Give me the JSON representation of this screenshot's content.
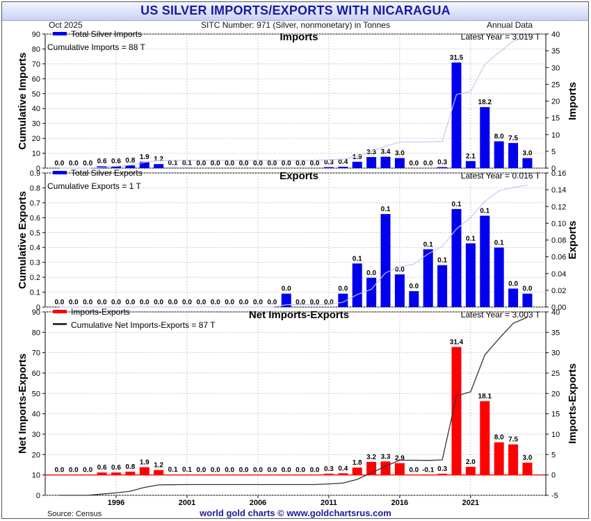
{
  "title": "US SILVER IMPORTS/EXPORTS WITH NICARAGUA",
  "header": {
    "date": "Oct  2025",
    "sitc": "SITC Number: 971 (Silver, nonmonetary) in Tonnes",
    "frequency": "Annual Data"
  },
  "footer": {
    "source": "Source: Census",
    "credit": "world gold charts © www.goldchartsrus.com"
  },
  "chart_data": [
    {
      "type": "bar",
      "title": "Imports",
      "legend": [
        "Total Silver Imports",
        "Cumulative Imports = 88 T"
      ],
      "latest": "Latest Year = 3.019 T",
      "ylabel_left": "Cumulative Imports",
      "ylabel_right": "Imports",
      "left_ticks": [
        "0",
        "10",
        "20",
        "30",
        "40",
        "50",
        "60",
        "70",
        "80",
        "90"
      ],
      "right_ticks": [
        "0",
        "5",
        "10",
        "15",
        "20",
        "25",
        "30",
        "35",
        "40"
      ],
      "ylim_left": [
        0,
        90
      ],
      "ylim_right": [
        0,
        40
      ],
      "years": [
        1992,
        1993,
        1994,
        1995,
        1996,
        1997,
        1998,
        1999,
        2000,
        2001,
        2002,
        2003,
        2004,
        2005,
        2006,
        2007,
        2008,
        2009,
        2010,
        2011,
        2012,
        2013,
        2014,
        2015,
        2016,
        2017,
        2018,
        2019,
        2020,
        2021,
        2022,
        2023,
        2024,
        2025
      ],
      "values": [
        0,
        0,
        0,
        0.6,
        0.6,
        0.8,
        1.9,
        1.2,
        0.1,
        0.1,
        0,
        0,
        0,
        0,
        0,
        0,
        0,
        0,
        0,
        0.3,
        0.4,
        1.9,
        3.3,
        3.4,
        3.0,
        0,
        0,
        0.3,
        31.5,
        2.1,
        18.2,
        8.0,
        7.5,
        3.0
      ],
      "value_labels": [
        "0.0",
        "0.0",
        "0.0",
        "0.6",
        "0.6",
        "0.8",
        "1.9",
        "1.2",
        "0.1",
        "0.1",
        "0.0",
        "0.0",
        "0.0",
        "0.0",
        "0.0",
        "0.0",
        "0.0",
        "0.0",
        "0.0",
        "0.3",
        "0.4",
        "1.9",
        "3.3",
        "3.4",
        "3.0",
        "0.0",
        "0.0",
        "0.3",
        "31.5",
        "2.1",
        "18.2",
        "8.0",
        "7.5",
        "3.0"
      ],
      "cumulative": [
        0,
        0,
        0,
        0.6,
        1.2,
        2.0,
        3.9,
        5.1,
        5.2,
        5.3,
        5.3,
        5.3,
        5.3,
        5.3,
        5.3,
        5.3,
        5.3,
        5.3,
        5.3,
        5.6,
        6.0,
        7.9,
        11.2,
        14.6,
        17.6,
        17.6,
        17.6,
        17.9,
        49.4,
        51.5,
        69.7,
        77.7,
        85.2,
        88.2
      ]
    },
    {
      "type": "bar",
      "title": "Exports",
      "legend": [
        "Total Silver Exports",
        "Cumulative Exports = 1 T"
      ],
      "latest": "Latest Year = 0.016 T",
      "ylabel_left": "Cumulative Exports",
      "ylabel_right": "Exports",
      "left_ticks": [
        "0",
        "0.1",
        "0.2",
        "0.3",
        "0.4",
        "0.5",
        "0.6",
        "0.7",
        "0.8",
        "0.9"
      ],
      "right_ticks": [
        "0.00",
        "0.02",
        "0.04",
        "0.06",
        "0.08",
        "0.10",
        "0.12",
        "0.14",
        "0.16"
      ],
      "ylim_left": [
        0,
        0.9
      ],
      "ylim_right": [
        0,
        0.16
      ],
      "years": [
        1992,
        1993,
        1994,
        1995,
        1996,
        1997,
        1998,
        1999,
        2000,
        2001,
        2002,
        2003,
        2004,
        2005,
        2006,
        2007,
        2008,
        2009,
        2010,
        2011,
        2012,
        2013,
        2014,
        2015,
        2016,
        2017,
        2018,
        2019,
        2020,
        2021,
        2022,
        2023,
        2024,
        2025
      ],
      "values": [
        0,
        0,
        0,
        0,
        0,
        0,
        0,
        0,
        0,
        0,
        0,
        0,
        0,
        0,
        0,
        0,
        0.016,
        0,
        0,
        0,
        0.016,
        0.052,
        0.035,
        0.111,
        0.039,
        0.019,
        0.069,
        0.05,
        0.117,
        0.076,
        0.109,
        0.071,
        0.022,
        0.016
      ],
      "value_labels": [
        "0.0",
        "0.0",
        "0.0",
        "0.0",
        "0.0",
        "0.0",
        "0.0",
        "0.0",
        "0.0",
        "0.0",
        "0.0",
        "0.0",
        "0.0",
        "0.0",
        "0.0",
        "0.0",
        "0.0",
        "0.0",
        "0.0",
        "0.0",
        "0.0",
        "0.1",
        "0.0",
        "0.1",
        "0.0",
        "0.0",
        "0.1",
        "0.1",
        "0.1",
        "0.1",
        "0.1",
        "0.1",
        "0.0",
        "0.0"
      ],
      "cumulative": [
        0,
        0,
        0,
        0,
        0,
        0,
        0,
        0,
        0,
        0,
        0,
        0,
        0,
        0,
        0,
        0,
        0.016,
        0.016,
        0.016,
        0.016,
        0.032,
        0.084,
        0.119,
        0.23,
        0.269,
        0.288,
        0.357,
        0.407,
        0.524,
        0.6,
        0.709,
        0.78,
        0.802,
        0.818
      ]
    },
    {
      "type": "bar",
      "title": "Net Imports-Exports",
      "legend": [
        "Imports-Exports",
        "Cumulative Net Imports-Exports = 87 T"
      ],
      "latest": "Latest Year = 3.003 T",
      "ylabel_left": "Net Imports-Exports",
      "ylabel_right": "Imports-Exports",
      "left_ticks": [
        "0",
        "10",
        "20",
        "30",
        "40",
        "50",
        "60",
        "70",
        "80",
        "90"
      ],
      "right_ticks": [
        "-5",
        "0",
        "5",
        "10",
        "15",
        "20",
        "25",
        "30",
        "35",
        "40"
      ],
      "ylim_left": [
        0,
        90
      ],
      "ylim_right": [
        -5,
        40
      ],
      "years": [
        1992,
        1993,
        1994,
        1995,
        1996,
        1997,
        1998,
        1999,
        2000,
        2001,
        2002,
        2003,
        2004,
        2005,
        2006,
        2007,
        2008,
        2009,
        2010,
        2011,
        2012,
        2013,
        2014,
        2015,
        2016,
        2017,
        2018,
        2019,
        2020,
        2021,
        2022,
        2023,
        2024,
        2025
      ],
      "values": [
        0,
        0,
        0,
        0.6,
        0.6,
        0.8,
        1.9,
        1.2,
        0.1,
        0.1,
        0,
        0,
        0,
        0,
        0,
        0,
        -0.016,
        0,
        0,
        0.3,
        0.4,
        1.8,
        3.2,
        3.3,
        2.9,
        -0.02,
        -0.1,
        0.3,
        31.4,
        2.0,
        18.1,
        8.0,
        7.5,
        3.0
      ],
      "value_labels": [
        "0.0",
        "0.0",
        "0.0",
        "0.6",
        "0.6",
        "0.8",
        "1.9",
        "1.2",
        "0.1",
        "0.1",
        "0.0",
        "0.0",
        "0.0",
        "0.0",
        "0.0",
        "0.0",
        "0.0",
        "0.0",
        "0.0",
        "0.3",
        "0.4",
        "1.8",
        "3.2",
        "3.3",
        "2.9",
        "0.0",
        "-0.1",
        "0.3",
        "31.4",
        "2.0",
        "18.1",
        "8.0",
        "7.5",
        "3.0"
      ],
      "cumulative": [
        0,
        0,
        0,
        0.6,
        1.2,
        2.0,
        3.9,
        5.1,
        5.2,
        5.3,
        5.3,
        5.3,
        5.3,
        5.3,
        5.3,
        5.3,
        5.3,
        5.3,
        5.3,
        5.6,
        6.0,
        7.8,
        11.0,
        14.3,
        17.2,
        17.2,
        17.1,
        17.4,
        48.8,
        50.8,
        68.9,
        76.9,
        84.4,
        87.4
      ],
      "x_ticks": [
        "1996",
        "2001",
        "2006",
        "2011",
        "2016",
        "2021"
      ],
      "x_tick_years": [
        1996,
        2001,
        2006,
        2011,
        2016,
        2021
      ]
    }
  ]
}
